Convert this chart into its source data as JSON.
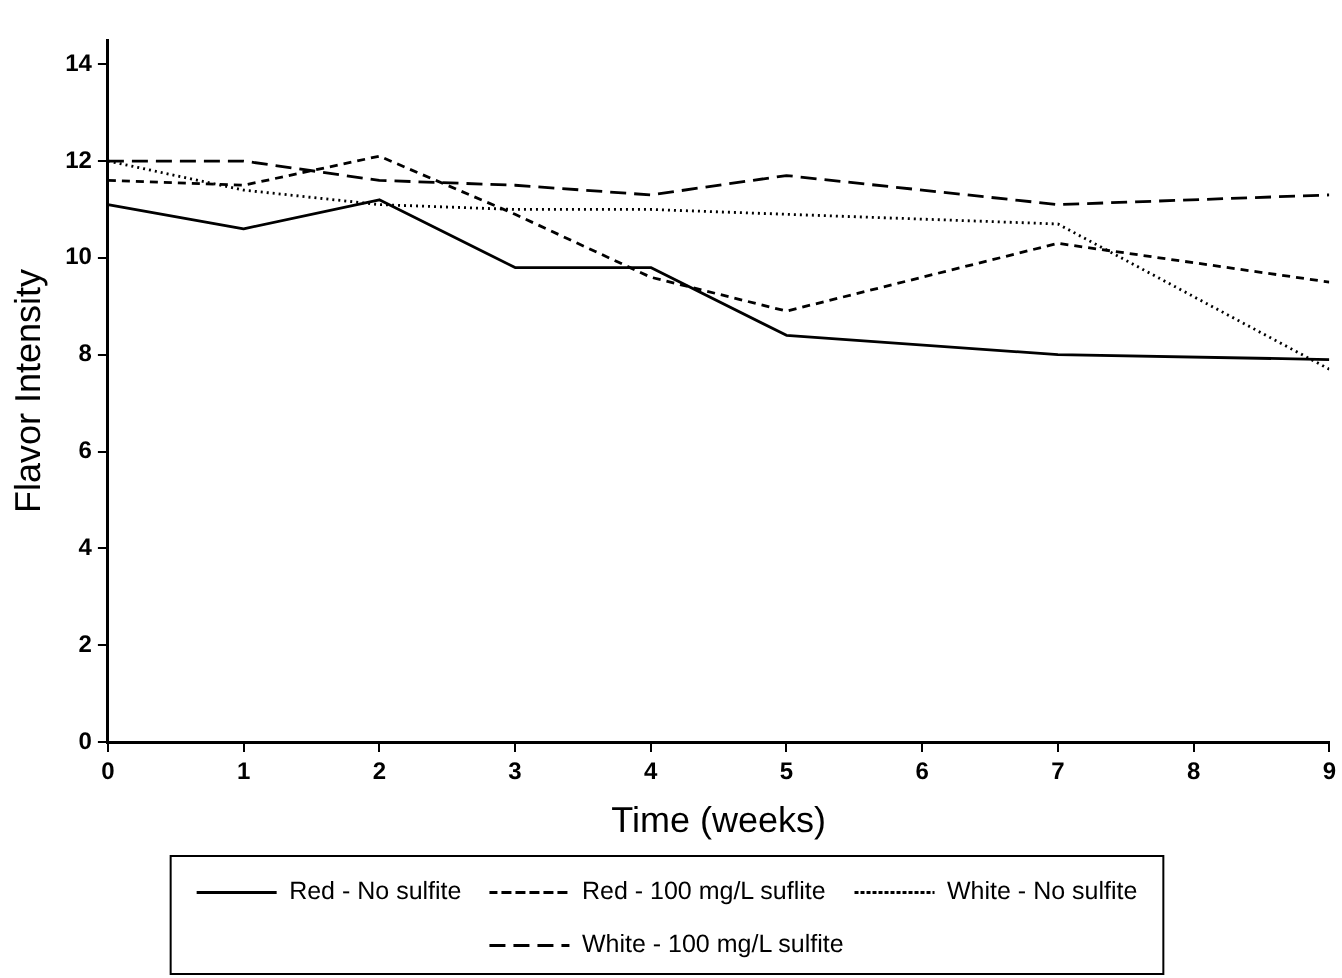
{
  "chart_data": {
    "type": "line",
    "xlabel": "Time (weeks)",
    "ylabel": "Flavor Intensity",
    "x": [
      0,
      1,
      2,
      3,
      4,
      5,
      7,
      9
    ],
    "xlim": [
      0,
      9
    ],
    "xticks": [
      0,
      1,
      2,
      3,
      4,
      5,
      6,
      7,
      8,
      9
    ],
    "ylim": [
      0,
      14.5
    ],
    "yticks": [
      0,
      2,
      4,
      6,
      8,
      10,
      12,
      14
    ],
    "grid": false,
    "legend": "bottom",
    "marker": "none",
    "series": [
      {
        "name": "Red - No sulfite",
        "color": "#000000",
        "line_style": "solid",
        "values": [
          11.1,
          10.6,
          11.2,
          9.8,
          9.8,
          8.4,
          8.0,
          7.9
        ]
      },
      {
        "name": "Red - 100 mg/L suflite",
        "color": "#000000",
        "line_style": "dashed",
        "values": [
          11.6,
          11.5,
          12.1,
          10.9,
          9.6,
          8.9,
          10.3,
          9.5
        ]
      },
      {
        "name": "White - No sulfite",
        "color": "#000000",
        "line_style": "dotted",
        "values": [
          12.0,
          11.4,
          11.1,
          11.0,
          11.0,
          10.9,
          10.7,
          7.7
        ]
      },
      {
        "name": "White - 100 mg/L sulfite",
        "color": "#000000",
        "line_style": "longdash",
        "values": [
          12.0,
          12.0,
          11.6,
          11.5,
          11.3,
          11.7,
          11.1,
          11.3
        ]
      }
    ]
  }
}
